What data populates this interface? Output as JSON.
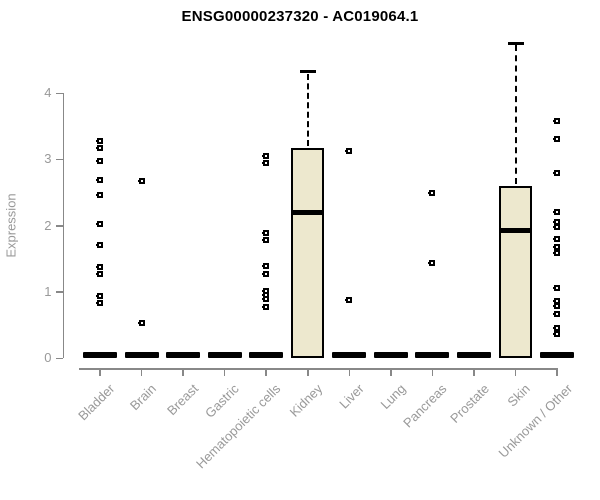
{
  "chart_data": {
    "type": "boxplot",
    "title": "ENSG00000237320 - AC019064.1",
    "ylabel": "Expression",
    "xlabel": "",
    "ylim": [
      0,
      4.75
    ],
    "yticks": [
      0,
      1,
      2,
      3,
      4
    ],
    "grid": false,
    "legend": "none",
    "box_fill_color": "#EDE8CE",
    "box_line_color": "#000000",
    "axis_color": "#888888",
    "tick_label_color": "#999999",
    "categories": [
      "Bladder",
      "Brain",
      "Breast",
      "Gastric",
      "Hematopoietic cells",
      "Kidney",
      "Liver",
      "Lung",
      "Pancreas",
      "Prostate",
      "Skin",
      "Unknown / Other"
    ],
    "boxes": [
      {
        "category": "Bladder",
        "q1": 0,
        "median": 0,
        "q3": 0,
        "whisker_low": 0,
        "whisker_high": 0,
        "outliers": [
          3.28,
          3.17,
          2.98,
          2.68,
          2.46,
          2.03,
          1.7,
          1.38,
          1.27,
          0.93,
          0.83
        ]
      },
      {
        "category": "Brain",
        "q1": 0,
        "median": 0,
        "q3": 0,
        "whisker_low": 0,
        "whisker_high": 0,
        "outliers": [
          2.67,
          0.53
        ]
      },
      {
        "category": "Breast",
        "q1": 0,
        "median": 0,
        "q3": 0,
        "whisker_low": 0,
        "whisker_high": 0,
        "outliers": []
      },
      {
        "category": "Gastric",
        "q1": 0,
        "median": 0,
        "q3": 0,
        "whisker_low": 0,
        "whisker_high": 0,
        "outliers": []
      },
      {
        "category": "Hematopoietic cells",
        "q1": 0,
        "median": 0,
        "q3": 0,
        "whisker_low": 0,
        "whisker_high": 0,
        "outliers": [
          3.05,
          2.94,
          1.88,
          1.78,
          1.39,
          1.27,
          1.01,
          0.95,
          0.89,
          0.77
        ]
      },
      {
        "category": "Kidney",
        "q1": 0,
        "median": 2.2,
        "q3": 3.17,
        "whisker_low": 0,
        "whisker_high": 4.32,
        "outliers": []
      },
      {
        "category": "Liver",
        "q1": 0,
        "median": 0,
        "q3": 0,
        "whisker_low": 0,
        "whisker_high": 0,
        "outliers": [
          3.13,
          0.88
        ]
      },
      {
        "category": "Lung",
        "q1": 0,
        "median": 0,
        "q3": 0,
        "whisker_low": 0,
        "whisker_high": 0,
        "outliers": []
      },
      {
        "category": "Pancreas",
        "q1": 0,
        "median": 0,
        "q3": 0,
        "whisker_low": 0,
        "whisker_high": 0,
        "outliers": [
          2.49,
          1.43
        ]
      },
      {
        "category": "Prostate",
        "q1": 0,
        "median": 0,
        "q3": 0,
        "whisker_low": 0,
        "whisker_high": 0,
        "outliers": []
      },
      {
        "category": "Skin",
        "q1": 0,
        "median": 1.93,
        "q3": 2.59,
        "whisker_low": 0,
        "whisker_high": 4.75,
        "outliers": []
      },
      {
        "category": "Unknown / Other",
        "q1": 0,
        "median": 0,
        "q3": 0,
        "whisker_low": 0,
        "whisker_high": 0,
        "outliers": [
          3.58,
          3.3,
          2.8,
          2.2,
          2.05,
          1.97,
          1.8,
          1.67,
          1.58,
          1.05,
          0.86,
          0.78,
          0.67,
          0.45,
          0.36
        ]
      }
    ]
  }
}
